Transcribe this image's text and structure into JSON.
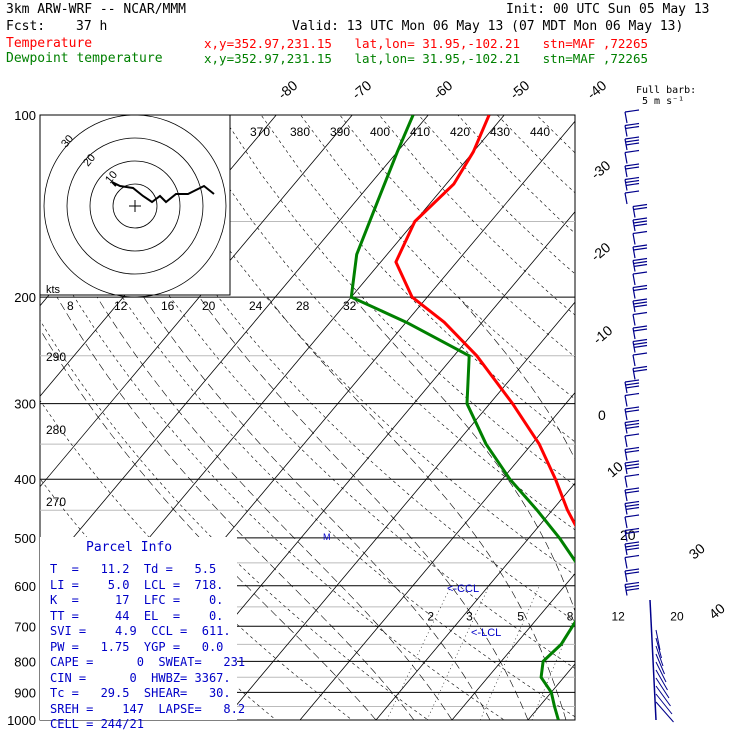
{
  "header": {
    "model": "3km ARW-WRF -- NCAR/MMM",
    "init": "Init: 00 UTC Sun 05 May 13",
    "fcst_label": "Fcst:",
    "fcst_value": "37 h",
    "valid": "Valid: 13 UTC Mon 06 May 13 (07 MDT Mon 06 May 13)"
  },
  "legend": {
    "temperature": {
      "label": "Temperature",
      "info": "x,y=352.97,231.15   lat,lon= 31.95,-102.21   stn=MAF ,72265",
      "color": "#ff0000"
    },
    "dewpoint": {
      "label": "Dewpoint temperature",
      "info": "x,y=352.97,231.15   lat,lon= 31.95,-102.21   stn=MAF ,72265",
      "color": "#008000"
    }
  },
  "barb_legend": {
    "line1": "Full barb:",
    "line2": "5 m s⁻¹"
  },
  "chart_data": {
    "type": "skew-t log-p",
    "pressure_ticks": [
      100,
      200,
      300,
      400,
      500,
      600,
      700,
      800,
      900,
      1000
    ],
    "temp_iso_labels": [
      "-80",
      "-70",
      "-60",
      "-50",
      "-40",
      "-30",
      "-20",
      "-10",
      "0",
      "10",
      "20",
      "30",
      "40"
    ],
    "theta_labels_top": [
      "370",
      "380",
      "390",
      "400",
      "410",
      "420",
      "430",
      "440"
    ],
    "theta_labels_left": [
      "290",
      "280",
      "270"
    ],
    "mixing_ratio_labels": [
      "2",
      "3",
      "5",
      "8",
      "12",
      "20"
    ],
    "hodograph": {
      "speed_unit": "kts",
      "ring_labels": [
        "10",
        "20",
        "30"
      ],
      "x_tick_labels": [
        "8",
        "12",
        "16",
        "20",
        "24",
        "28",
        "32"
      ]
    },
    "lcl_marks": [
      "<-CCL",
      "<-LCL"
    ],
    "series": [
      {
        "name": "Temperature",
        "points": [
          [
            1000,
            29.5
          ],
          [
            970,
            30
          ],
          [
            940,
            29
          ],
          [
            905,
            29
          ],
          [
            880,
            28
          ],
          [
            850,
            24
          ],
          [
            820,
            20
          ],
          [
            790,
            16
          ],
          [
            750,
            13
          ],
          [
            700,
            11.2
          ],
          [
            650,
            7
          ],
          [
            600,
            5
          ],
          [
            550,
            2
          ],
          [
            500,
            -3
          ],
          [
            450,
            -8
          ],
          [
            400,
            -13
          ],
          [
            350,
            -19
          ],
          [
            300,
            -27
          ],
          [
            250,
            -37
          ],
          [
            220,
            -45
          ],
          [
            200,
            -52
          ],
          [
            175,
            -58
          ],
          [
            150,
            -60
          ],
          [
            130,
            -59
          ],
          [
            115,
            -60
          ],
          [
            100,
            -62
          ]
        ]
      },
      {
        "name": "Dewpoint temperature",
        "points": [
          [
            1000,
            14
          ],
          [
            950,
            12
          ],
          [
            900,
            10
          ],
          [
            850,
            7
          ],
          [
            800,
            5.5
          ],
          [
            750,
            6
          ],
          [
            700,
            5.5
          ],
          [
            650,
            5
          ],
          [
            600,
            2
          ],
          [
            550,
            -1
          ],
          [
            500,
            -6
          ],
          [
            450,
            -12
          ],
          [
            400,
            -19
          ],
          [
            350,
            -26
          ],
          [
            300,
            -33
          ],
          [
            250,
            -38
          ],
          [
            220,
            -50
          ],
          [
            200,
            -60
          ],
          [
            170,
            -64
          ],
          [
            140,
            -67
          ],
          [
            115,
            -70
          ],
          [
            100,
            -72
          ]
        ]
      }
    ]
  },
  "parcel_info": {
    "title": "Parcel Info",
    "rows": [
      [
        "T  =",
        "11.2",
        "Td =",
        "5.5"
      ],
      [
        "LI =",
        "5.0",
        "LCL =",
        "718."
      ],
      [
        "K  =",
        "17",
        "LFC =",
        "0."
      ],
      [
        "TT =",
        "44",
        "EL  =",
        "0."
      ],
      [
        "SVI =",
        "4.9",
        "CCL =",
        "611."
      ],
      [
        "PW =",
        "1.75",
        "YGP =",
        "0.0"
      ],
      [
        "CAPE =",
        "0",
        "SWEAT=",
        "231"
      ],
      [
        "CIN =",
        "0",
        "HWBZ=",
        "3367."
      ],
      [
        "Tc =",
        "29.5",
        "SHEAR=",
        "30."
      ],
      [
        "SREH =",
        "147",
        "LAPSE=",
        "8.2"
      ],
      [
        "CELL =",
        "244/21",
        "",
        ""
      ]
    ]
  },
  "colors": {
    "temperature": "#ff0000",
    "dewpoint": "#008000",
    "panel_text": "#0000c8",
    "barbs": "#00008b"
  }
}
